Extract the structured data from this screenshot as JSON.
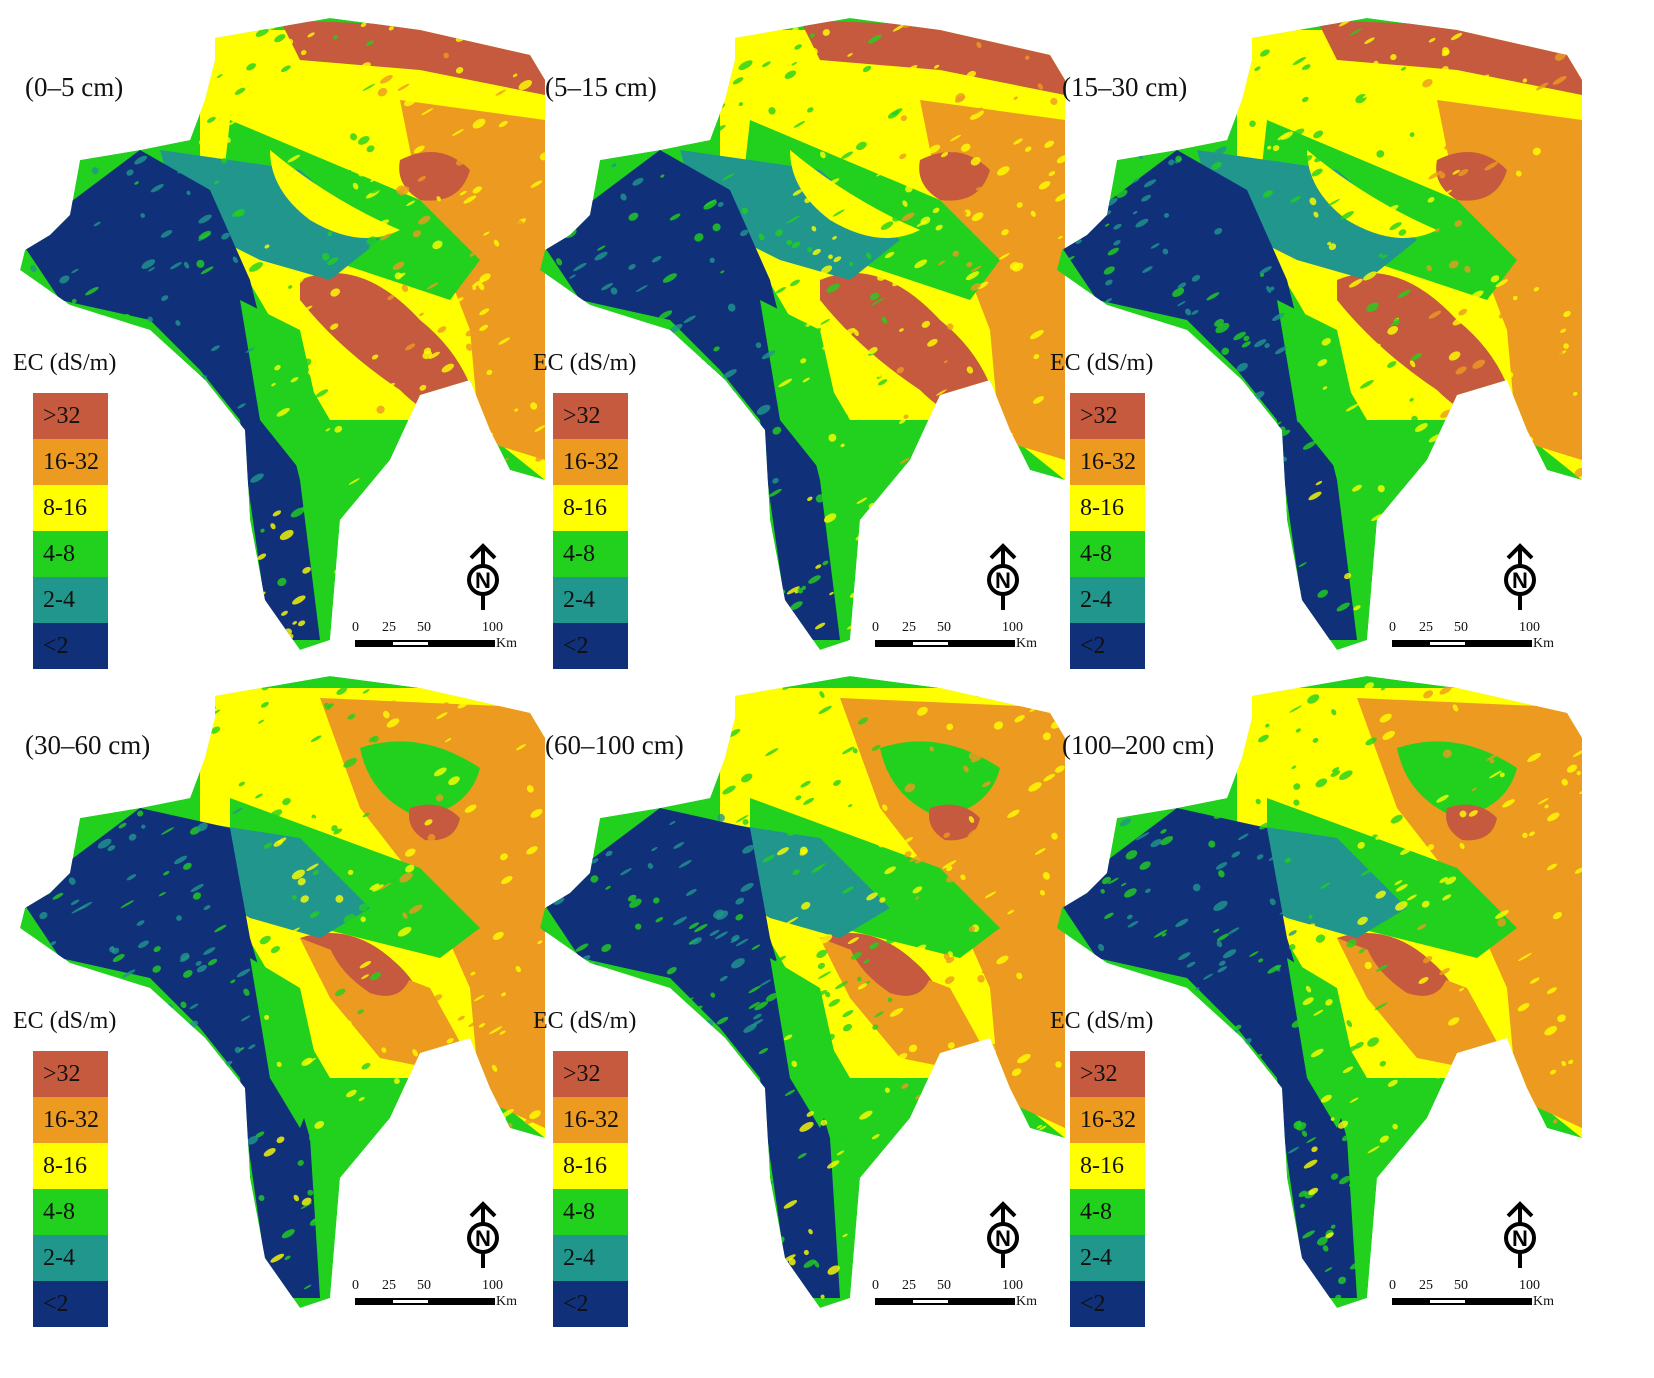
{
  "figure": {
    "panels": [
      {
        "depth": "(0–5 cm)"
      },
      {
        "depth": "(5–15 cm)"
      },
      {
        "depth": "(15–30 cm)"
      },
      {
        "depth": "(30–60 cm)"
      },
      {
        "depth": "(60–100 cm)"
      },
      {
        "depth": "(100–200 cm)"
      }
    ],
    "legend": {
      "title": "EC (dS/m)",
      "classes": [
        {
          "label": ">32",
          "color": "#c55a3e"
        },
        {
          "label": "16-32",
          "color": "#ec9a20"
        },
        {
          "label": "8-16",
          "color": "#ffff00"
        },
        {
          "label": "4-8",
          "color": "#22d11e"
        },
        {
          "label": "2-4",
          "color": "#21968d"
        },
        {
          "label": "<2",
          "color": "#10307a"
        }
      ]
    },
    "scale": {
      "ticks": [
        "0",
        "25",
        "50",
        "100"
      ],
      "unit": "Km"
    },
    "north_label": "N"
  }
}
